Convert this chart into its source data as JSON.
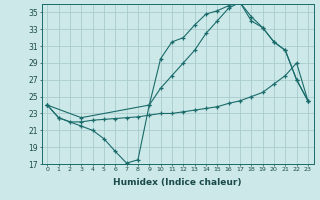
{
  "xlabel": "Humidex (Indice chaleur)",
  "bg_color": "#cde8e8",
  "grid_color": "#aacccc",
  "line_color": "#1a6b6b",
  "xlim": [
    -0.5,
    23.5
  ],
  "ylim": [
    17,
    36
  ],
  "yticks": [
    17,
    19,
    21,
    23,
    25,
    27,
    29,
    31,
    33,
    35
  ],
  "xticks": [
    0,
    1,
    2,
    3,
    4,
    5,
    6,
    7,
    8,
    9,
    10,
    11,
    12,
    13,
    14,
    15,
    16,
    17,
    18,
    19,
    20,
    21,
    22,
    23
  ],
  "series1_x": [
    0,
    1,
    3,
    4,
    5,
    6,
    7,
    8,
    9,
    10,
    11,
    12,
    13,
    14,
    15,
    16,
    17,
    18,
    19,
    20,
    21,
    22,
    23
  ],
  "series1_y": [
    24,
    22.5,
    21.5,
    21.0,
    20.0,
    18.5,
    17.1,
    17.5,
    24.0,
    29.5,
    31.5,
    32.0,
    33.5,
    34.8,
    35.2,
    35.8,
    36.2,
    34.5,
    33.2,
    31.5,
    30.5,
    27.0,
    24.5
  ],
  "series2_x": [
    0,
    1,
    2,
    3,
    4,
    5,
    6,
    7,
    8,
    9,
    10,
    11,
    12,
    13,
    14,
    15,
    16,
    17,
    18,
    19,
    20,
    21,
    22,
    23
  ],
  "series2_y": [
    24,
    22.5,
    22.0,
    22.0,
    22.2,
    22.3,
    22.4,
    22.5,
    22.6,
    22.8,
    23.0,
    23.0,
    23.2,
    23.4,
    23.6,
    23.8,
    24.2,
    24.5,
    25.0,
    25.5,
    26.5,
    27.5,
    29.0,
    24.5
  ],
  "series3_x": [
    0,
    3,
    9,
    10,
    11,
    12,
    13,
    14,
    15,
    16,
    17,
    18,
    19,
    20,
    21,
    22,
    23
  ],
  "series3_y": [
    24,
    22.5,
    24.0,
    26.0,
    27.5,
    29.0,
    30.5,
    32.5,
    34.0,
    35.5,
    36.2,
    34.0,
    33.2,
    31.5,
    30.5,
    27.0,
    24.5
  ]
}
